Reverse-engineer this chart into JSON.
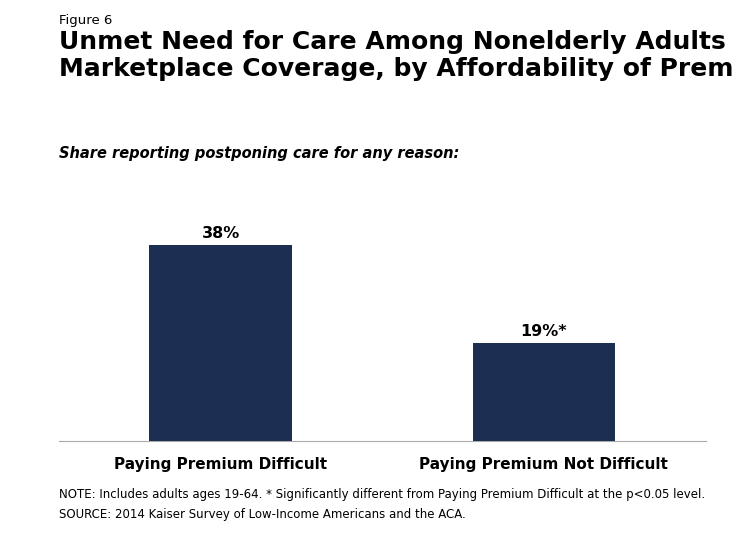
{
  "figure_label": "Figure 6",
  "title": "Unmet Need for Care Among Nonelderly Adults with\nMarketplace Coverage, by Affordability of Premium",
  "subtitle": "Share reporting postponing care for any reason:",
  "categories": [
    "Paying Premium Difficult",
    "Paying Premium Not Difficult"
  ],
  "values": [
    38,
    19
  ],
  "bar_labels": [
    "38%",
    "19%*"
  ],
  "bar_color": "#1c2f52",
  "ylim": [
    0,
    45
  ],
  "note_line1": "NOTE: Includes adults ages 19-64. * Significantly different from Paying Premium Difficult at the p<0.05 level.",
  "note_line2": "SOURCE: 2014 Kaiser Survey of Low-Income Americans and the ACA.",
  "background_color": "#ffffff",
  "bar_width": 0.22,
  "title_fontsize": 18,
  "subtitle_fontsize": 10.5,
  "figure_label_fontsize": 9.5,
  "bar_label_fontsize": 11.5,
  "tick_label_fontsize": 11,
  "note_fontsize": 8.5,
  "kff_box_color": "#1c2f52",
  "kff_text_color": "#ffffff"
}
